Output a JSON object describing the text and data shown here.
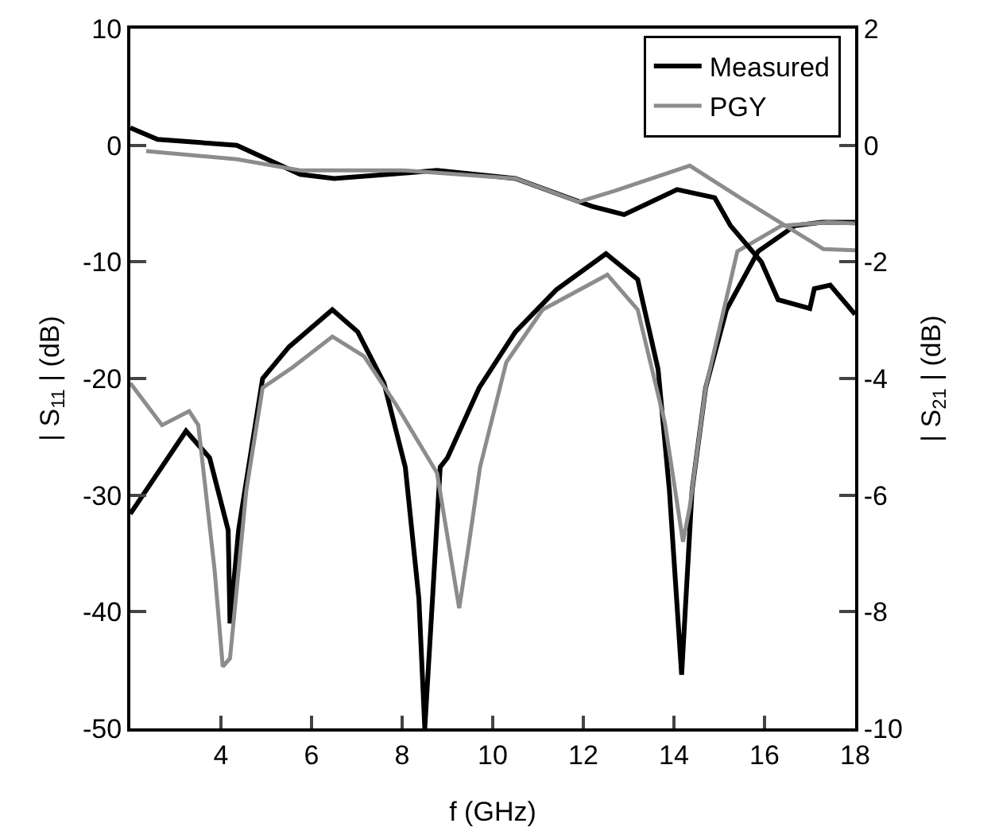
{
  "chart_data": {
    "type": "line",
    "xlabel": "f (GHz)",
    "ylabel": "| S$_{11}$ | (dB)",
    "y2label": "| S$_{21}$ | (dB)",
    "xlim": [
      2,
      18
    ],
    "xticks": [
      4,
      6,
      8,
      10,
      12,
      14,
      16,
      18
    ],
    "ylim": [
      -50,
      10
    ],
    "yticks": [
      10,
      0,
      -10,
      -20,
      -30,
      -40,
      -50
    ],
    "y2lim": [
      -10,
      2
    ],
    "y2ticks": [
      2,
      0,
      -2,
      -4,
      -6,
      -8,
      -10
    ],
    "grid": false,
    "legend": "top right",
    "marker": "none",
    "line_style": "solid",
    "series": [
      {
        "name": "Measured",
        "color": "#000000",
        "x": [
          2.0,
          3.23,
          3.75,
          4.16,
          4.2,
          4.39,
          4.92,
          5.5,
          6.46,
          7.02,
          7.6,
          8.07,
          8.37,
          8.5,
          8.67,
          8.84,
          9.0,
          9.7,
          10.5,
          11.4,
          12.5,
          13.2,
          13.65,
          13.9,
          14.17,
          14.4,
          14.7,
          15.16,
          15.86,
          16.67,
          17.27,
          18.0
        ],
        "values": [
          -31.6,
          -24.5,
          -26.8,
          -33,
          -41,
          -33,
          -20,
          -17.3,
          -14.1,
          -16,
          -20.4,
          -27.6,
          -38.9,
          -50,
          -38.9,
          -27.6,
          -26.8,
          -20.8,
          -16,
          -12.4,
          -9.3,
          -11.5,
          -19.2,
          -29.6,
          -45.4,
          -29.6,
          -20.8,
          -14.1,
          -9.1,
          -6.9,
          -6.6,
          -6.6
        ]
      },
      {
        "name": "PGY",
        "color": "#8c8c8c",
        "x": [
          2.0,
          2.7,
          3.3,
          3.5,
          3.86,
          4.04,
          4.2,
          4.56,
          4.92,
          5.6,
          6.46,
          7.16,
          7.86,
          8.77,
          9.26,
          9.47,
          9.72,
          10.3,
          11.1,
          12.53,
          13.2,
          13.8,
          14.2,
          14.35,
          14.7,
          15.4,
          16.37,
          17.4,
          18.0
        ],
        "values": [
          -20.4,
          -24,
          -22.8,
          -24,
          -36.4,
          -44.7,
          -44,
          -29.6,
          -20.8,
          -19,
          -16.4,
          -18.1,
          -22.2,
          -28.1,
          -39.7,
          -34.3,
          -27.6,
          -18.6,
          -14.1,
          -11.1,
          -14.1,
          -23.8,
          -34,
          -31,
          -20.8,
          -9.1,
          -6.9,
          -6.6,
          -6.7
        ]
      },
      {
        "color": "#000000",
        "axis": "y2",
        "x": [
          2.0,
          2.6,
          4.35,
          5.75,
          6.5,
          7.86,
          8.77,
          10.5,
          12.2,
          12.9,
          14.07,
          14.9,
          15.25,
          15.93,
          16.3,
          17.0,
          17.1,
          17.45,
          18.0
        ],
        "values": [
          0.3,
          0.1,
          0,
          -0.5,
          -0.57,
          -0.49,
          -0.43,
          -0.57,
          -1.05,
          -1.19,
          -0.76,
          -0.9,
          -1.38,
          -2.0,
          -2.65,
          -2.8,
          -2.46,
          -2.4,
          -2.9
        ]
      },
      {
        "color": "#8c8c8c",
        "axis": "y2",
        "x": [
          2.35,
          4.35,
          5.75,
          8.0,
          10.5,
          11.9,
          12.7,
          14.35,
          15.5,
          17.3,
          18.0
        ],
        "values": [
          -0.1,
          -0.24,
          -0.43,
          -0.43,
          -0.57,
          -0.97,
          -0.78,
          -0.35,
          -0.92,
          -1.78,
          -1.8
        ]
      }
    ]
  }
}
